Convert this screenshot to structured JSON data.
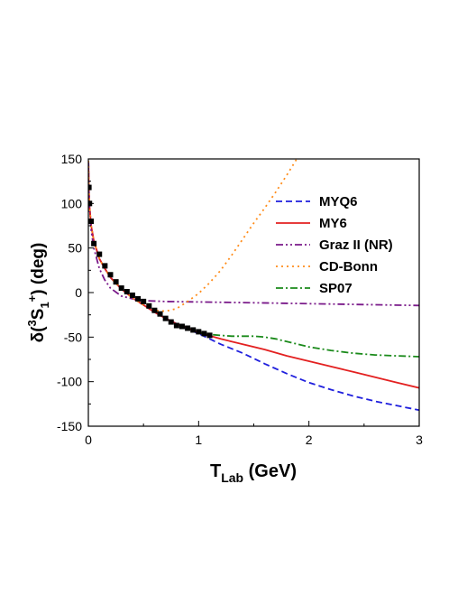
{
  "chart_data": {
    "type": "line",
    "xlabel": {
      "main": "T",
      "sub": "Lab",
      "rest": " (GeV)"
    },
    "ylabel": {
      "pre": "δ(",
      "sup1": "3",
      "main": "S",
      "sub": "1",
      "sup2": "+",
      "post": ") (deg)"
    },
    "xlim": [
      0,
      3
    ],
    "ylim": [
      -150,
      150
    ],
    "xticks": [
      0,
      1,
      2,
      3
    ],
    "xtick_labels": [
      "0",
      "1",
      "2",
      "3"
    ],
    "yticks": [
      -150,
      -100,
      -50,
      0,
      50,
      100,
      150
    ],
    "ytick_labels": [
      "-150",
      "-100",
      "-50",
      "0",
      "50",
      "100",
      "150"
    ],
    "grid": false,
    "legend_position": "top-right",
    "series": [
      {
        "name": "MYQ6",
        "color": "#1f1fdd",
        "dash": "dash",
        "x": [
          0.001,
          0.005,
          0.01,
          0.025,
          0.05,
          0.1,
          0.15,
          0.2,
          0.3,
          0.4,
          0.5,
          0.6,
          0.7,
          0.8,
          0.9,
          1.0,
          1.2,
          1.4,
          1.6,
          1.8,
          2.0,
          2.2,
          2.4,
          2.6,
          2.8,
          3.0
        ],
        "y": [
          148,
          115,
          98,
          75,
          58,
          38,
          27,
          17,
          4,
          -6,
          -14,
          -22,
          -29,
          -35,
          -41,
          -46,
          -58,
          -68,
          -80,
          -91,
          -101,
          -109,
          -116,
          -122,
          -127,
          -132
        ]
      },
      {
        "name": "MY6",
        "color": "#e32020",
        "dash": "solid",
        "x": [
          0.001,
          0.005,
          0.01,
          0.025,
          0.05,
          0.1,
          0.15,
          0.2,
          0.3,
          0.4,
          0.5,
          0.6,
          0.7,
          0.8,
          0.9,
          1.0,
          1.2,
          1.4,
          1.6,
          1.8,
          2.0,
          2.2,
          2.4,
          2.6,
          2.8,
          3.0
        ],
        "y": [
          148,
          115,
          98,
          75,
          58,
          38,
          27,
          17,
          4,
          -6,
          -14,
          -22,
          -29,
          -35,
          -40,
          -45,
          -52,
          -58,
          -64,
          -71,
          -77,
          -83,
          -89,
          -95,
          -101,
          -107
        ]
      },
      {
        "name": "Graz II (NR)",
        "color": "#7a1a8a",
        "dash": "dashdotdot",
        "x": [
          0.001,
          0.005,
          0.01,
          0.025,
          0.05,
          0.1,
          0.15,
          0.2,
          0.3,
          0.4,
          0.5,
          0.7,
          1.0,
          1.5,
          2.0,
          2.5,
          3.0
        ],
        "y": [
          146,
          112,
          95,
          70,
          50,
          27,
          14,
          5,
          -4,
          -7,
          -9,
          -10,
          -10.5,
          -11.5,
          -12.5,
          -13.5,
          -14.5
        ]
      },
      {
        "name": "CD-Bonn",
        "color": "#ff8c1a",
        "dash": "dot",
        "x": [
          0.001,
          0.005,
          0.01,
          0.025,
          0.05,
          0.1,
          0.15,
          0.2,
          0.3,
          0.4,
          0.5,
          0.6,
          0.7,
          0.8,
          0.9,
          1.0,
          1.1,
          1.2,
          1.3,
          1.4,
          1.5,
          1.6,
          1.7,
          1.8,
          1.85,
          1.9
        ],
        "y": [
          148,
          115,
          98,
          75,
          58,
          38,
          27,
          17,
          4,
          -6,
          -14,
          -20,
          -21,
          -18,
          -10,
          -1,
          11,
          25,
          42,
          60,
          78,
          95,
          113,
          132,
          142,
          152
        ]
      },
      {
        "name": "SP07",
        "color": "#1a8a1a",
        "dash": "dashdot",
        "x": [
          1.0,
          1.1,
          1.2,
          1.3,
          1.4,
          1.5,
          1.6,
          1.7,
          1.8,
          1.9,
          2.0,
          2.2,
          2.4,
          2.6,
          2.8,
          3.0
        ],
        "y": [
          -45,
          -47,
          -48,
          -49,
          -49,
          -49,
          -50,
          -52,
          -55,
          -58,
          -61,
          -65,
          -68,
          -70,
          -71,
          -72
        ]
      }
    ],
    "data_points": {
      "color": "#000000",
      "x": [
        0.005,
        0.01,
        0.025,
        0.05,
        0.1,
        0.15,
        0.2,
        0.25,
        0.3,
        0.35,
        0.4,
        0.45,
        0.5,
        0.55,
        0.6,
        0.65,
        0.7,
        0.75,
        0.8,
        0.85,
        0.9,
        0.95,
        1.0,
        1.05,
        1.1
      ],
      "y": [
        118,
        100,
        80,
        55,
        43,
        30,
        20,
        12,
        5,
        1,
        -3,
        -7,
        -10,
        -15,
        -20,
        -24,
        -29,
        -33,
        -37,
        -38,
        -40,
        -42,
        -44,
        -46,
        -48
      ]
    }
  }
}
